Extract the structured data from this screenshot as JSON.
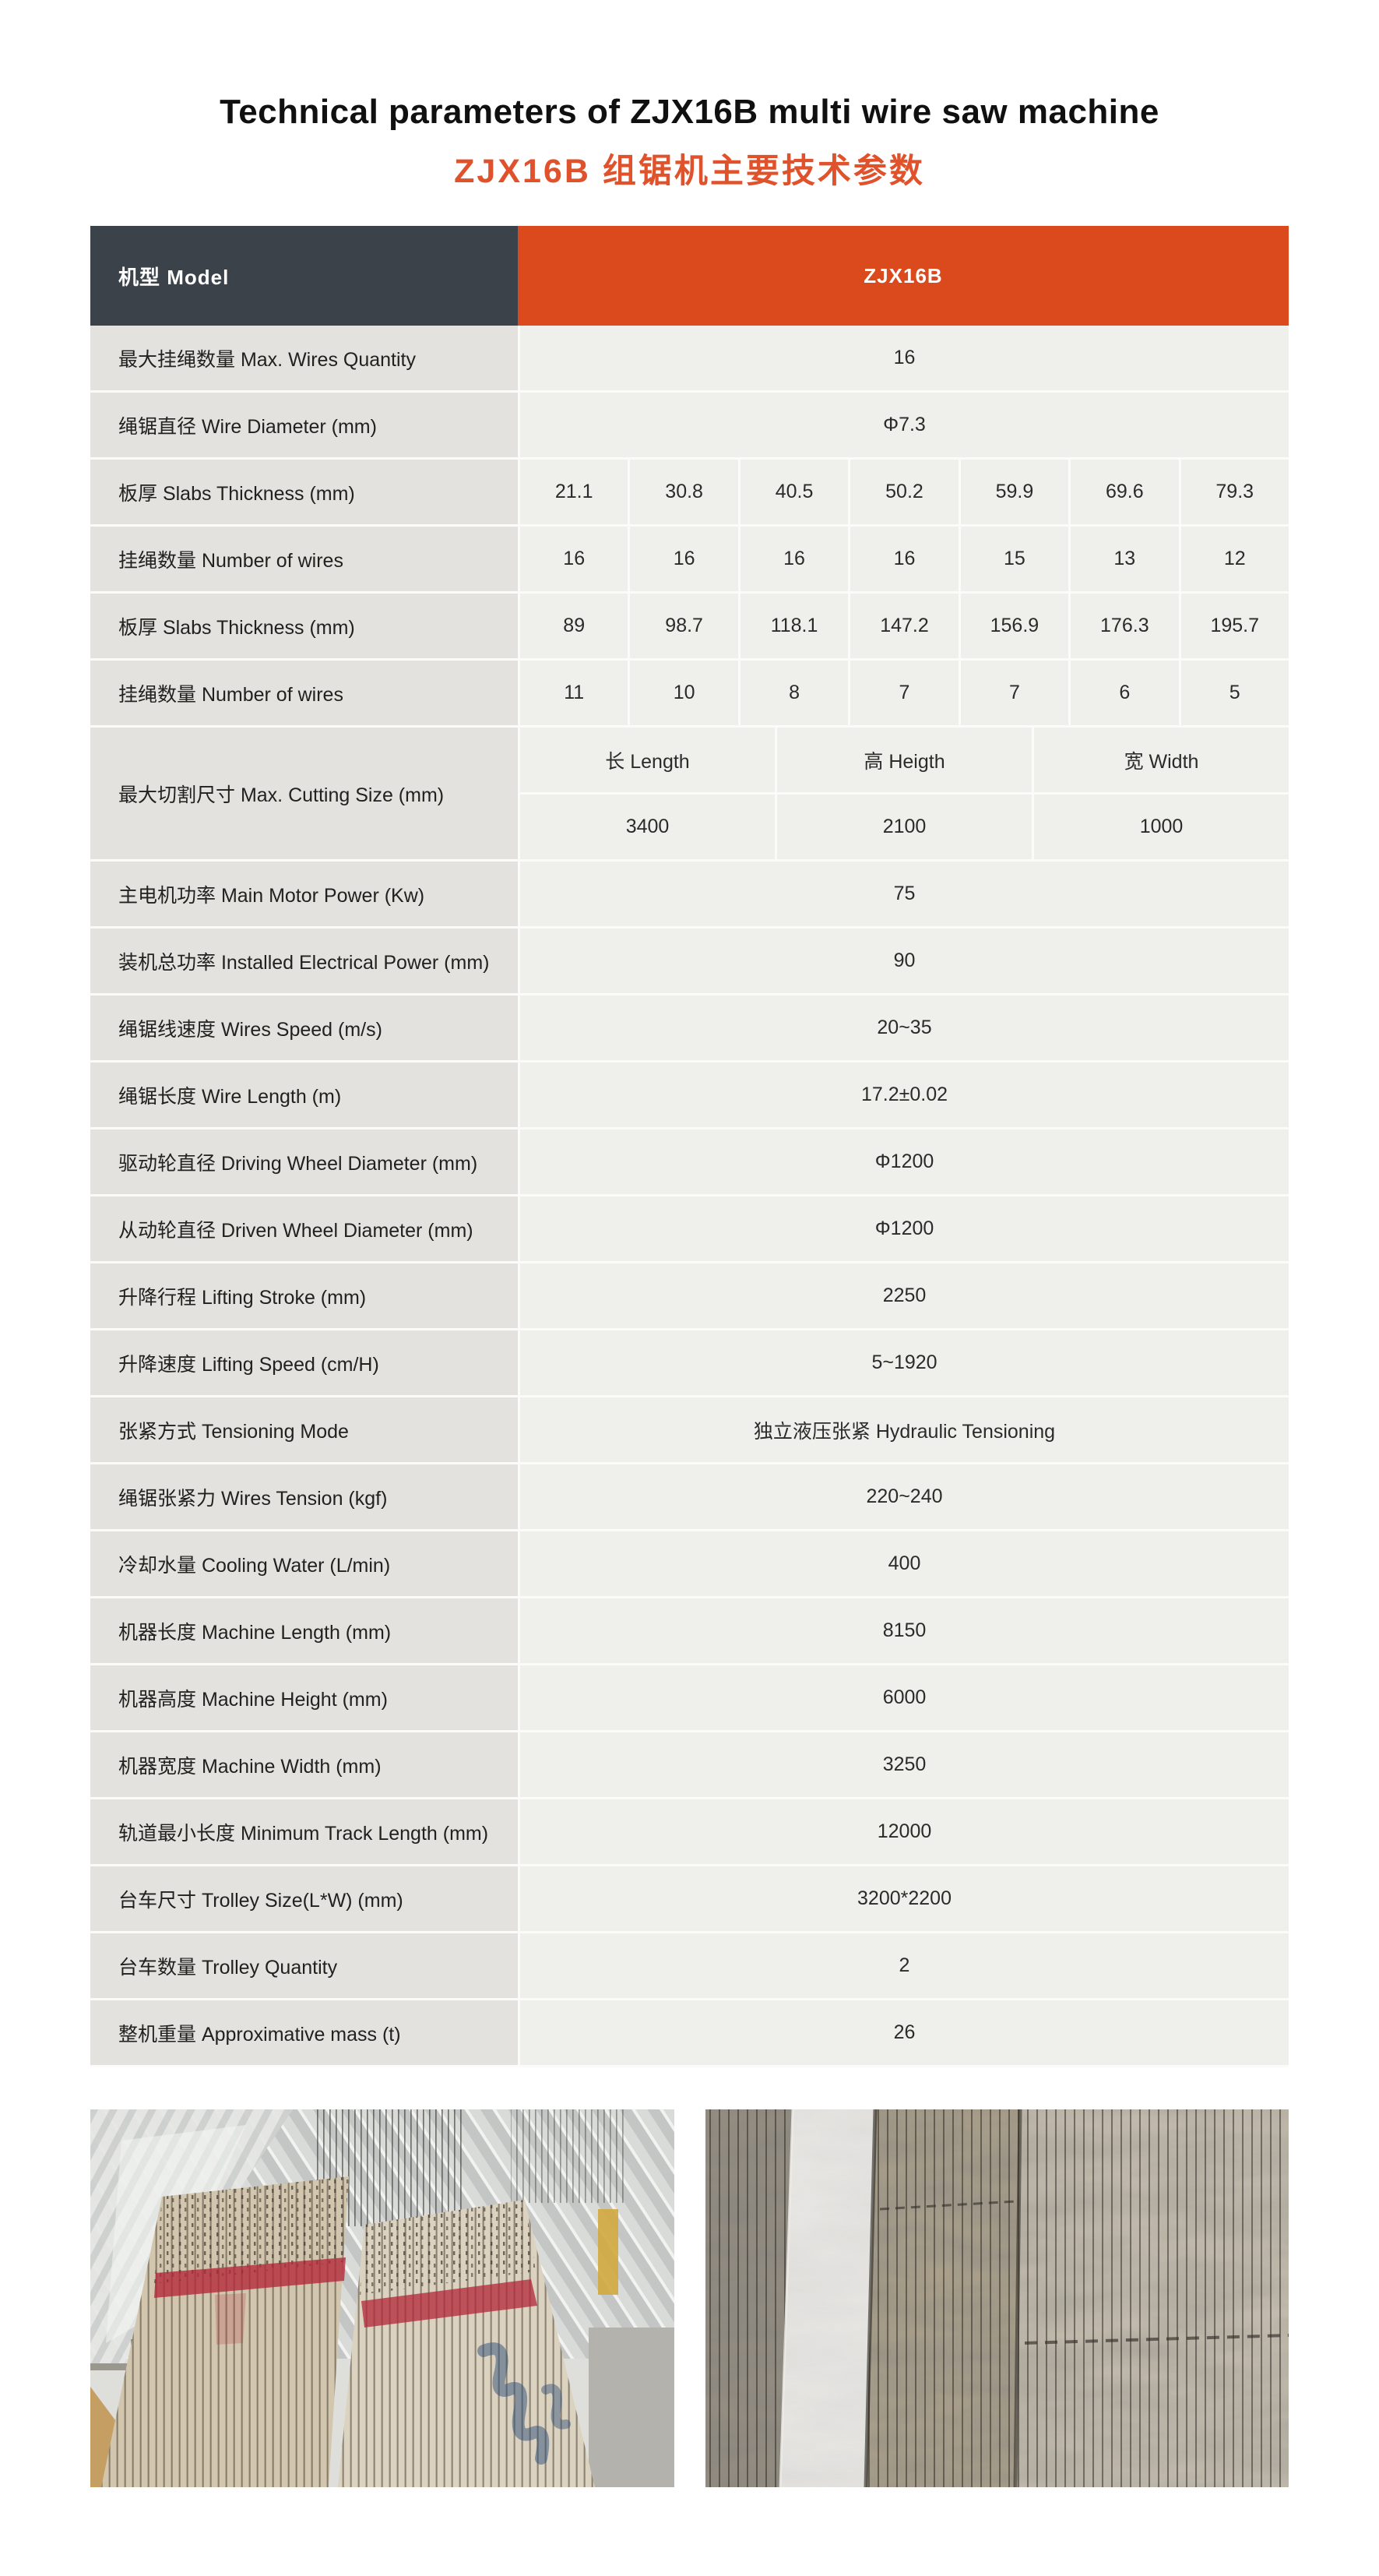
{
  "header": {
    "title": "Technical parameters of ZJX16B multi wire saw machine",
    "subtitle": "ZJX16B 组锯机主要技术参数"
  },
  "table": {
    "model_row": {
      "label": "机型 Model",
      "value": "ZJX16B"
    },
    "rows": [
      {
        "type": "single",
        "label": "最大挂绳数量 Max. Wires Quantity",
        "value": "16"
      },
      {
        "type": "single",
        "label": "绳锯直径 Wire Diameter (mm)",
        "value": "Φ7.3"
      },
      {
        "type": "multi",
        "label": "板厚 Slabs Thickness (mm)",
        "values": [
          "21.1",
          "30.8",
          "40.5",
          "50.2",
          "59.9",
          "69.6",
          "79.3"
        ]
      },
      {
        "type": "multi",
        "label": "挂绳数量  Number of wires",
        "values": [
          "16",
          "16",
          "16",
          "16",
          "15",
          "13",
          "12"
        ]
      },
      {
        "type": "multi",
        "label": "板厚 Slabs Thickness (mm)",
        "values": [
          "89",
          "98.7",
          "118.1",
          "147.2",
          "156.9",
          "176.3",
          "195.7"
        ]
      },
      {
        "type": "multi",
        "label": "挂绳数量  Number of wires",
        "values": [
          "11",
          "10",
          "8",
          "7",
          "7",
          "6",
          "5"
        ]
      },
      {
        "type": "grid",
        "label": "最大切割尺寸 Max. Cutting Size (mm)",
        "headers": [
          "长 Length",
          "高 Heigth",
          "宽 Width"
        ],
        "values": [
          "3400",
          "2100",
          "1000"
        ]
      },
      {
        "type": "single",
        "label": "主电机功率 Main Motor Power (Kw)",
        "value": "75"
      },
      {
        "type": "single",
        "label": "装机总功率 Installed Electrical Power (mm)",
        "value": "90"
      },
      {
        "type": "single",
        "label": "绳锯线速度 Wires Speed (m/s)",
        "value": "20~35"
      },
      {
        "type": "single",
        "label": "绳锯长度 Wire Length (m)",
        "value": "17.2±0.02"
      },
      {
        "type": "single",
        "label": "驱动轮直径 Driving Wheel Diameter (mm)",
        "value": "Φ1200"
      },
      {
        "type": "single",
        "label": "从动轮直径 Driven Wheel Diameter (mm)",
        "value": "Φ1200"
      },
      {
        "type": "single",
        "label": "升降行程 Lifting Stroke (mm)",
        "value": "2250"
      },
      {
        "type": "single",
        "label": "升降速度 Lifting Speed (cm/H)",
        "value": "5~1920"
      },
      {
        "type": "single",
        "label": "张紧方式 Tensioning Mode",
        "value": "独立液压张紧 Hydraulic Tensioning"
      },
      {
        "type": "single",
        "label": "绳锯张紧力 Wires Tension (kgf)",
        "value": "220~240"
      },
      {
        "type": "single",
        "label": "冷却水量 Cooling Water (L/min)",
        "value": "400"
      },
      {
        "type": "single",
        "label": "机器长度 Machine Length (mm)",
        "value": "8150"
      },
      {
        "type": "single",
        "label": "机器高度 Machine Height (mm)",
        "value": "6000"
      },
      {
        "type": "single",
        "label": "机器宽度 Machine Width (mm)",
        "value": "3250"
      },
      {
        "type": "single",
        "label": "轨道最小长度 Minimum Track Length (mm)",
        "value": "12000"
      },
      {
        "type": "single",
        "label": "台车尺寸 Trolley Size(L*W) (mm)",
        "value": "3200*2200"
      },
      {
        "type": "single",
        "label": "台车数量 Trolley Quantity",
        "value": "2"
      },
      {
        "type": "single",
        "label": "整机重量 Approximative mass (t)",
        "value": "26"
      }
    ]
  },
  "photos": [
    {
      "name": "wire-sawn-slab-stacks-factory-photo"
    },
    {
      "name": "marble-slabs-closeup-photo"
    }
  ],
  "colors": {
    "header_dark": "#3c424a",
    "header_orange": "#da4a1d",
    "subtitle_orange": "#e0522b",
    "label_bg": "#e3e2de",
    "value_bg": "#efefec",
    "separator": "#fbfbf9"
  }
}
